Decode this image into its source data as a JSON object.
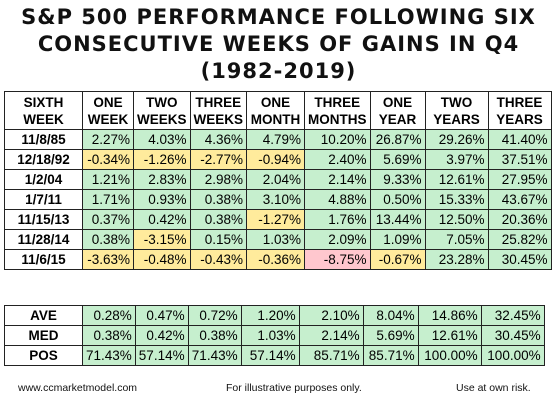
{
  "title_lines": [
    "S&P 500 PERFORMANCE FOLLOWING SIX",
    "CONSECUTIVE WEEKS OF GAINS IN Q4",
    "(1982-2019)"
  ],
  "colors": {
    "positive_fill": "#c6efce",
    "negative_fill": "#ffeb9c",
    "large_negative_fill": "#ffc7ce"
  },
  "chart_data": {
    "type": "table",
    "columns": [
      "SIXTH WEEK",
      "ONE WEEK",
      "TWO WEEKS",
      "THREE WEEKS",
      "ONE MONTH",
      "THREE MONTHS",
      "ONE YEAR",
      "TWO YEARS",
      "THREE YEARS"
    ],
    "rows": [
      {
        "label": "11/8/85",
        "values": [
          "2.27%",
          "4.03%",
          "4.36%",
          "4.79%",
          "10.20%",
          "26.87%",
          "29.26%",
          "41.40%"
        ]
      },
      {
        "label": "12/18/92",
        "values": [
          "-0.34%",
          "-1.26%",
          "-2.77%",
          "-0.94%",
          "2.40%",
          "5.69%",
          "3.97%",
          "37.51%"
        ]
      },
      {
        "label": "1/2/04",
        "values": [
          "1.21%",
          "2.83%",
          "2.98%",
          "2.04%",
          "2.14%",
          "9.33%",
          "12.61%",
          "27.95%"
        ]
      },
      {
        "label": "1/7/11",
        "values": [
          "1.71%",
          "0.93%",
          "0.38%",
          "3.10%",
          "4.88%",
          "0.50%",
          "15.33%",
          "43.67%"
        ]
      },
      {
        "label": "11/15/13",
        "values": [
          "0.37%",
          "0.42%",
          "0.38%",
          "-1.27%",
          "1.76%",
          "13.44%",
          "12.50%",
          "20.36%"
        ]
      },
      {
        "label": "11/28/14",
        "values": [
          "0.38%",
          "-3.15%",
          "0.15%",
          "1.03%",
          "2.09%",
          "1.09%",
          "7.05%",
          "25.82%"
        ]
      },
      {
        "label": "11/6/15",
        "values": [
          "-3.63%",
          "-0.48%",
          "-0.43%",
          "-0.36%",
          "-8.75%",
          "-0.67%",
          "23.28%",
          "30.45%"
        ]
      }
    ],
    "summary_rows": [
      {
        "label": "AVE",
        "values": [
          "0.28%",
          "0.47%",
          "0.72%",
          "1.20%",
          "2.10%",
          "8.04%",
          "14.86%",
          "32.45%"
        ]
      },
      {
        "label": "MED",
        "values": [
          "0.38%",
          "0.42%",
          "0.38%",
          "1.03%",
          "2.14%",
          "5.69%",
          "12.61%",
          "30.45%"
        ]
      },
      {
        "label": "POS",
        "values": [
          "71.43%",
          "57.14%",
          "71.43%",
          "57.14%",
          "85.71%",
          "85.71%",
          "100.00%",
          "100.00%"
        ]
      }
    ]
  },
  "footer": {
    "left": "www.ccmarketmodel.com",
    "center": "For illustrative purposes only.",
    "right": "Use at own risk."
  }
}
